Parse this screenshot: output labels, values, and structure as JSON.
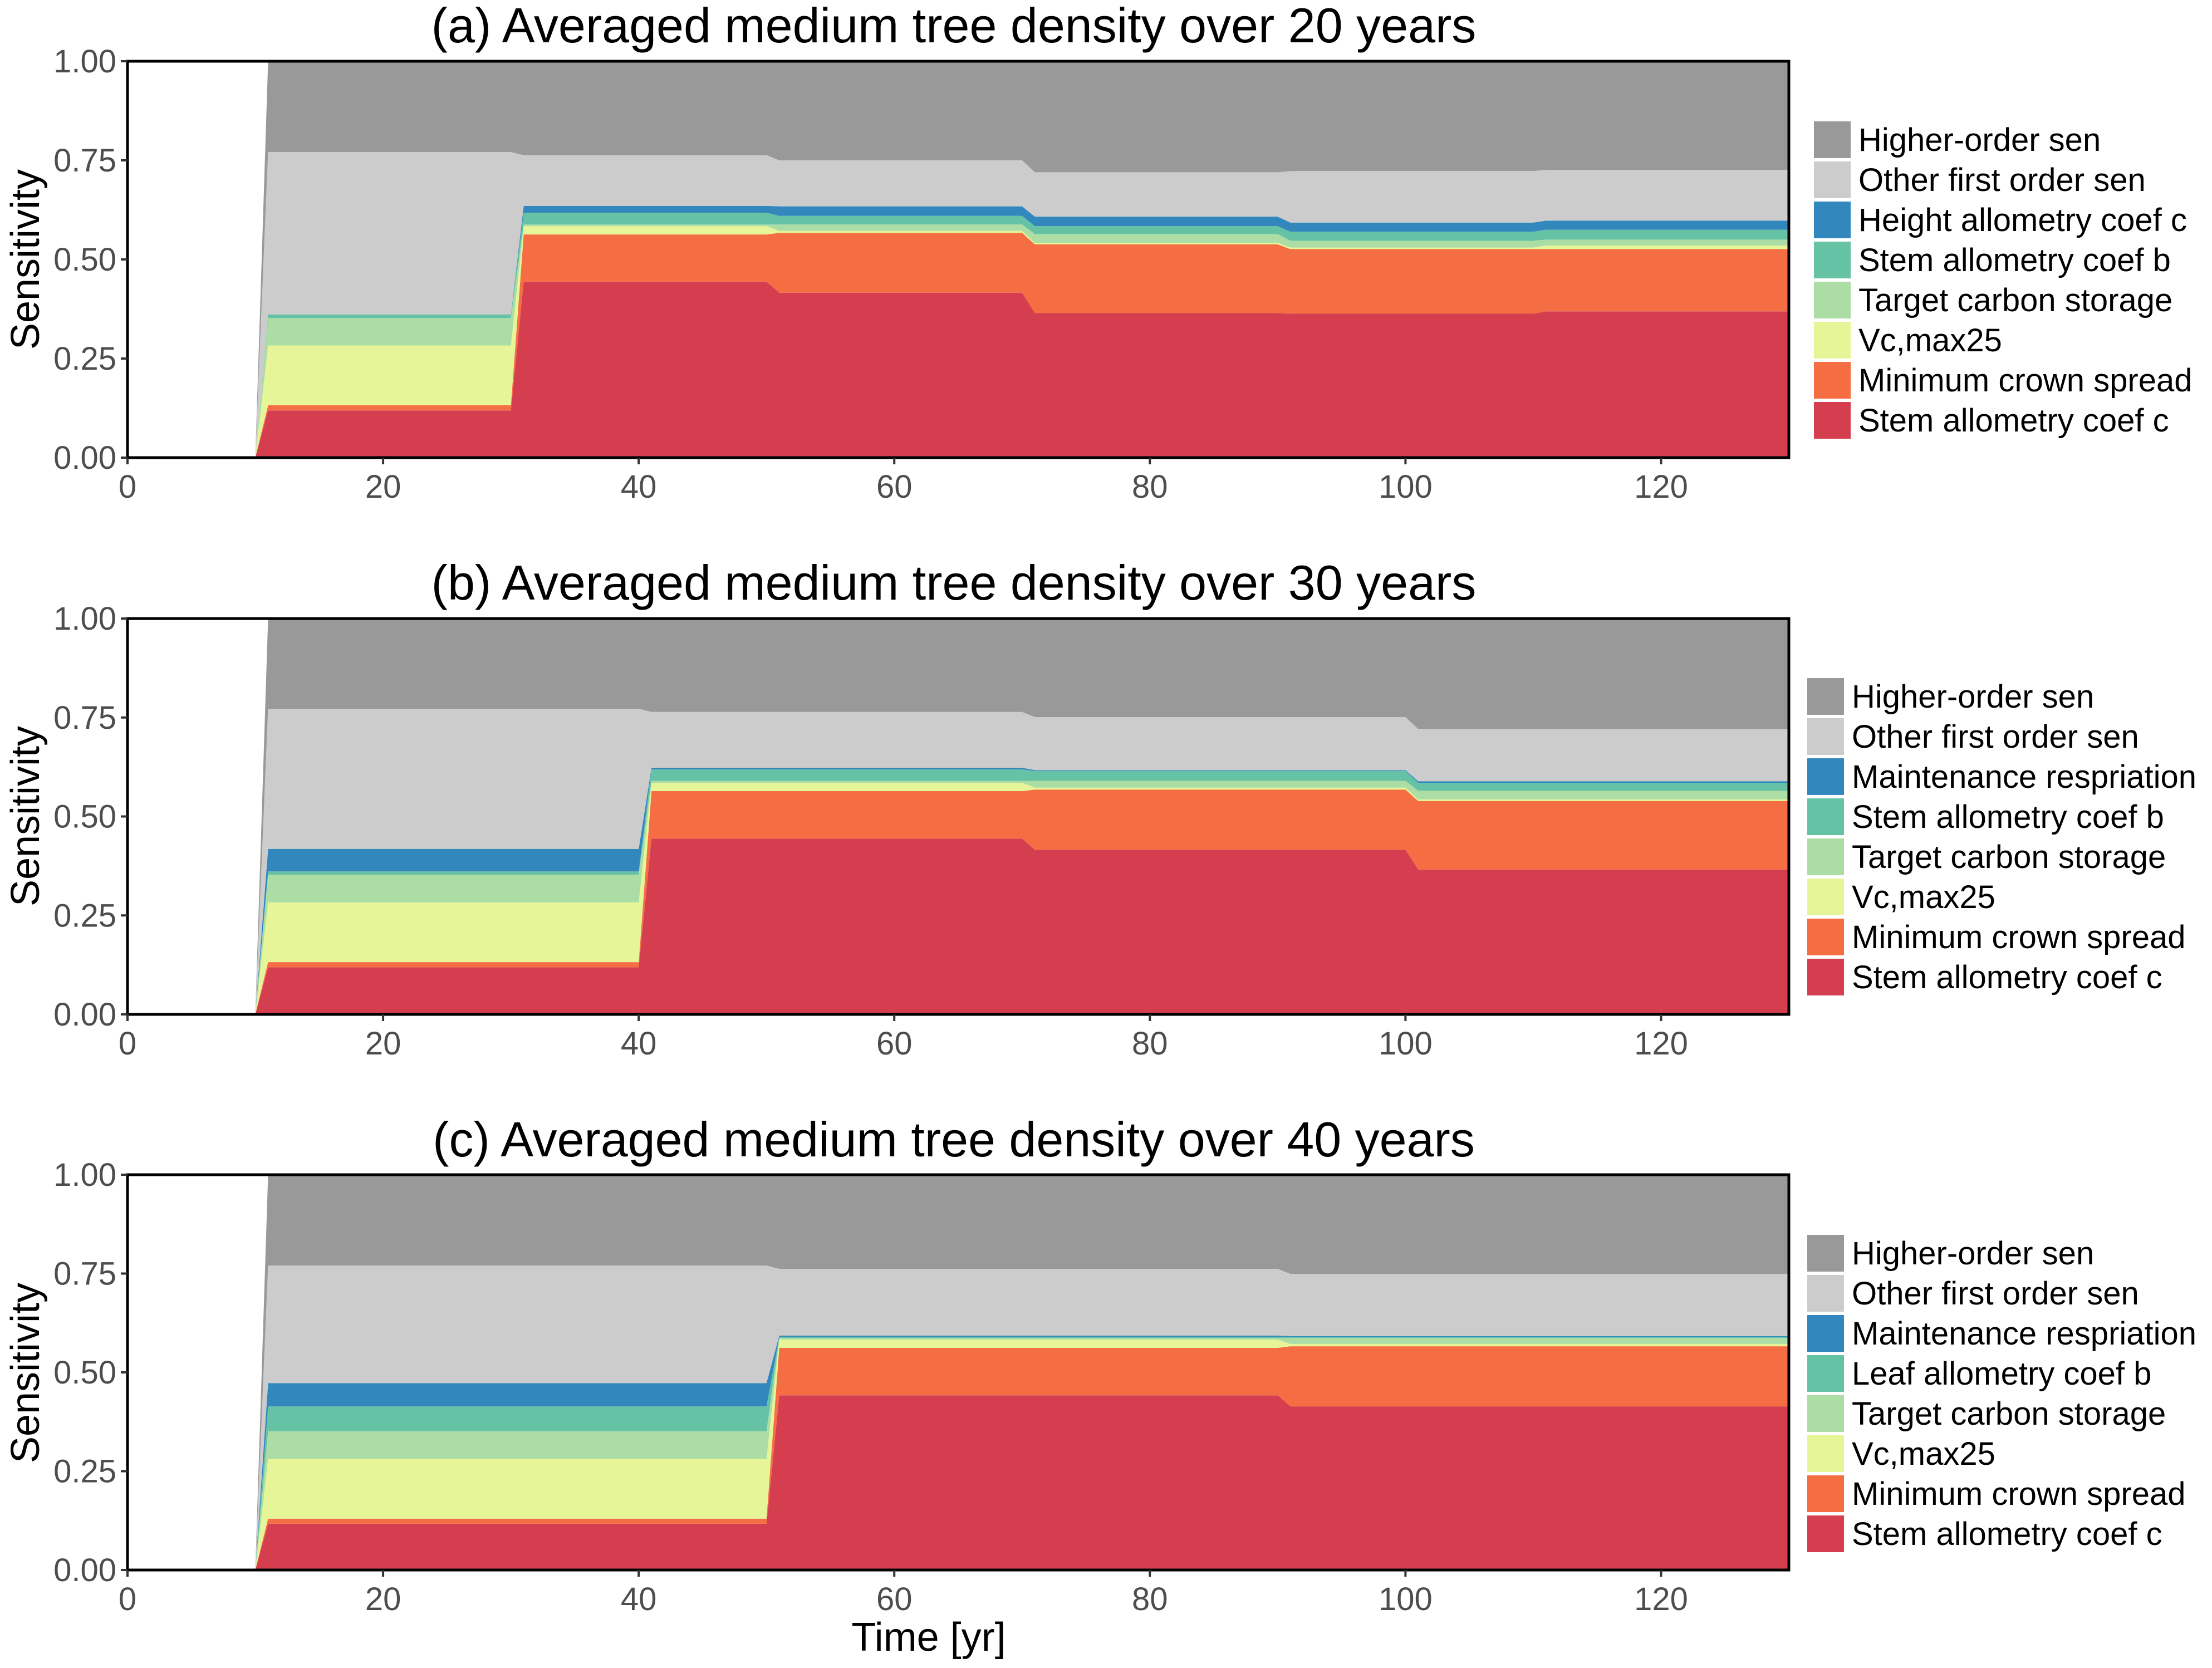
{
  "figure": {
    "xlabel": "Time [yr]",
    "ylabel": "Sensitivity"
  },
  "chart_data": [
    {
      "type": "area",
      "stacked": true,
      "title": "(a) Averaged medium tree density over 20 years",
      "xlabel": "Time [yr]",
      "ylabel": "Sensitivity",
      "xlim": [
        0,
        130
      ],
      "ylim": [
        0,
        1
      ],
      "x_ticks": [
        "0",
        "20",
        "40",
        "60",
        "80",
        "100",
        "120"
      ],
      "x_tick_values": [
        0,
        20,
        40,
        60,
        80,
        100,
        120
      ],
      "y_ticks": [
        "0.00",
        "0.25",
        "0.50",
        "0.75",
        "1.00"
      ],
      "y_tick_values": [
        0,
        0.25,
        0.5,
        0.75,
        1.0
      ],
      "grid": false,
      "legend_position": "right",
      "start_zero_x": 10,
      "segments": [
        {
          "x_start": 11,
          "x_end": 30
        },
        {
          "x_start": 31,
          "x_end": 50
        },
        {
          "x_start": 51,
          "x_end": 70
        },
        {
          "x_start": 71,
          "x_end": 90
        },
        {
          "x_start": 91,
          "x_end": 110
        },
        {
          "x_start": 111,
          "x_end": 130
        }
      ],
      "series": [
        {
          "name": "Stem allometry coef c",
          "color": "#D53E4F",
          "values": [
            0.119,
            0.444,
            0.416,
            0.365,
            0.363,
            0.369
          ]
        },
        {
          "name": "Minimum crown spread",
          "color": "#F46D43",
          "values": [
            0.013,
            0.119,
            0.151,
            0.173,
            0.163,
            0.157
          ]
        },
        {
          "name": "Vc,max25",
          "color": "#E6F598",
          "values": [
            0.151,
            0.021,
            0.005,
            0.004,
            0.004,
            0.009
          ]
        },
        {
          "name": "Target carbon storage",
          "color": "#ABDDA4",
          "values": [
            0.069,
            0.004,
            0.016,
            0.022,
            0.017,
            0.015
          ]
        },
        {
          "name": "Stem allometry coef b",
          "color": "#66C2A5",
          "values": [
            0.009,
            0.03,
            0.022,
            0.02,
            0.023,
            0.025
          ]
        },
        {
          "name": "Height allometry coef c",
          "color": "#3288BD",
          "values": [
            0.0,
            0.017,
            0.024,
            0.024,
            0.023,
            0.023
          ]
        },
        {
          "name": "Other first order sen",
          "color": "#CCCCCC",
          "values": [
            0.41,
            0.128,
            0.116,
            0.112,
            0.13,
            0.128
          ]
        },
        {
          "name": "Higher-order sen",
          "color": "#999999",
          "values": [
            0.229,
            0.237,
            0.25,
            0.28,
            0.277,
            0.274
          ]
        }
      ],
      "legend": [
        "Higher-order sen",
        "Other first order sen",
        "Height allometry coef c",
        "Stem allometry coef b",
        "Target carbon storage",
        "Vc,max25",
        "Minimum crown spread",
        "Stem allometry coef c"
      ]
    },
    {
      "type": "area",
      "stacked": true,
      "title": "(b) Averaged medium tree density over 30 years",
      "xlabel": "",
      "ylabel": "Sensitivity",
      "xlim": [
        0,
        130
      ],
      "ylim": [
        0,
        1
      ],
      "x_ticks": [
        "0",
        "20",
        "40",
        "60",
        "80",
        "100",
        "120"
      ],
      "x_tick_values": [
        0,
        20,
        40,
        60,
        80,
        100,
        120
      ],
      "y_ticks": [
        "0.00",
        "0.25",
        "0.50",
        "0.75",
        "1.00"
      ],
      "y_tick_values": [
        0,
        0.25,
        0.5,
        0.75,
        1.0
      ],
      "grid": false,
      "legend_position": "right",
      "start_zero_x": 10,
      "segments": [
        {
          "x_start": 11,
          "x_end": 40
        },
        {
          "x_start": 41,
          "x_end": 70
        },
        {
          "x_start": 71,
          "x_end": 100
        },
        {
          "x_start": 101,
          "x_end": 130
        }
      ],
      "series": [
        {
          "name": "Stem allometry coef c",
          "color": "#D53E4F",
          "values": [
            0.119,
            0.444,
            0.416,
            0.366
          ]
        },
        {
          "name": "Minimum crown spread",
          "color": "#F46D43",
          "values": [
            0.013,
            0.12,
            0.152,
            0.173
          ]
        },
        {
          "name": "Vc,max25",
          "color": "#E6F598",
          "values": [
            0.151,
            0.021,
            0.005,
            0.004
          ]
        },
        {
          "name": "Target carbon storage",
          "color": "#ABDDA4",
          "values": [
            0.07,
            0.005,
            0.017,
            0.022
          ]
        },
        {
          "name": "Stem allometry coef b",
          "color": "#66C2A5",
          "values": [
            0.008,
            0.029,
            0.025,
            0.02
          ]
        },
        {
          "name": "Maintenance respriation",
          "color": "#3288BD",
          "values": [
            0.057,
            0.004,
            0.002,
            0.004
          ]
        },
        {
          "name": "Other first order sen",
          "color": "#CCCCCC",
          "values": [
            0.354,
            0.141,
            0.134,
            0.132
          ]
        },
        {
          "name": "Higher-order sen",
          "color": "#999999",
          "values": [
            0.228,
            0.236,
            0.249,
            0.279
          ]
        }
      ],
      "legend": [
        "Higher-order sen",
        "Other first order sen",
        "Maintenance respriation",
        "Stem allometry coef b",
        "Target carbon storage",
        "Vc,max25",
        "Minimum crown spread",
        "Stem allometry coef c"
      ]
    },
    {
      "type": "area",
      "stacked": true,
      "title": "(c) Averaged medium tree density over 40 years",
      "xlabel": "Time [yr]",
      "ylabel": "Sensitivity",
      "xlim": [
        0,
        130
      ],
      "ylim": [
        0,
        1
      ],
      "x_ticks": [
        "0",
        "20",
        "40",
        "60",
        "80",
        "100",
        "120"
      ],
      "x_tick_values": [
        0,
        20,
        40,
        60,
        80,
        100,
        120
      ],
      "y_ticks": [
        "0.00",
        "0.25",
        "0.50",
        "0.75",
        "1.00"
      ],
      "y_tick_values": [
        0,
        0.25,
        0.5,
        0.75,
        1.0
      ],
      "grid": false,
      "legend_position": "right",
      "start_zero_x": 10,
      "segments": [
        {
          "x_start": 11,
          "x_end": 50
        },
        {
          "x_start": 51,
          "x_end": 90
        },
        {
          "x_start": 91,
          "x_end": 130
        }
      ],
      "series": [
        {
          "name": "Stem allometry coef c",
          "color": "#D53E4F",
          "values": [
            0.117,
            0.442,
            0.414
          ]
        },
        {
          "name": "Minimum crown spread",
          "color": "#F46D43",
          "values": [
            0.013,
            0.12,
            0.152
          ]
        },
        {
          "name": "Vc,max25",
          "color": "#E6F598",
          "values": [
            0.151,
            0.021,
            0.006
          ]
        },
        {
          "name": "Target carbon storage",
          "color": "#ABDDA4",
          "values": [
            0.07,
            0.004,
            0.015
          ]
        },
        {
          "name": "Leaf allometry coef b",
          "color": "#66C2A5",
          "values": [
            0.063,
            0.003,
            0.003
          ]
        },
        {
          "name": "Maintenance respriation",
          "color": "#3288BD",
          "values": [
            0.059,
            0.003,
            0.002
          ]
        },
        {
          "name": "Other first order sen",
          "color": "#CCCCCC",
          "values": [
            0.297,
            0.169,
            0.157
          ]
        },
        {
          "name": "Higher-order sen",
          "color": "#999999",
          "values": [
            0.23,
            0.238,
            0.251
          ]
        }
      ],
      "legend": [
        "Higher-order sen",
        "Other first order sen",
        "Maintenance respriation",
        "Leaf allometry coef b",
        "Target carbon storage",
        "Vc,max25",
        "Minimum crown spread",
        "Stem allometry coef c"
      ]
    }
  ]
}
